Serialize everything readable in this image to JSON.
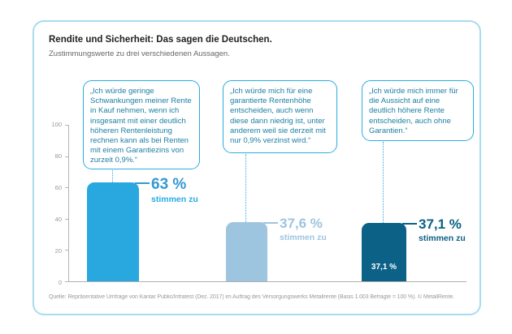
{
  "header": {
    "title": "Rendite und Sicherheit: Das sagen die Deutschen.",
    "subtitle": "Zustimmungswerte zu drei verschiedenen Aussagen."
  },
  "bubbles": [
    {
      "text": "„Ich würde geringe Schwankungen meiner Rente in Kauf nehmen, wenn ich insgesamt mit einer deutlich höheren Rentenleistung rechnen kann als bei Renten mit einem Garantiezins von zurzeit 0,9%.“"
    },
    {
      "text": "„Ich würde mich für eine garantierte Rentenhöhe entscheiden, auch wenn diese dann niedrig ist, unter anderem weil sie derzeit mit nur 0,9% verzinst wird.“"
    },
    {
      "text": "„Ich würde mich immer für die Aussicht auf eine deutlich höhere Rente entscheiden, auch ohne Garantien.“"
    }
  ],
  "bars": [
    {
      "value_label": "63 %",
      "agree_label": "stimmen zu",
      "inside_label": ""
    },
    {
      "value_label": "37,6 %",
      "agree_label": "stimmen zu",
      "inside_label": ""
    },
    {
      "value_label": "37,1 %",
      "agree_label": "stimmen zu",
      "inside_label": "37,1 %"
    }
  ],
  "y_axis": {
    "ticks": [
      "100",
      "80",
      "60",
      "40",
      "20",
      "0"
    ]
  },
  "footer": {
    "source": "Quelle: Repräsentative Umfrage von Kantar Public/Infratest (Dez. 2017) im Auftrag des Versorgungswerks Metallrente (Basis 1.003 Befragte = 100 %). © MetallRente."
  },
  "colors": {
    "card_border": "#a9dbee",
    "bubble_border": "#2aabe2",
    "bubble_text": "#1d7fa3",
    "bar_1": "#29a8e0",
    "bar_2": "#9dc5e0",
    "bar_3": "#0c6187",
    "bar_1_label": "#3498d1",
    "bar_1_sublabel": "#29abe2",
    "axis": "#b5b5b5",
    "muted_text": "#9a9a9a"
  },
  "chart_data": {
    "type": "bar",
    "title": "Rendite und Sicherheit: Das sagen die Deutschen.",
    "subtitle": "Zustimmungswerte zu drei verschiedenen Aussagen.",
    "categories": [
      "Ich würde geringe Schwankungen meiner Rente in Kauf nehmen, wenn ich insgesamt mit einer deutlich höheren Rentenleistung rechnen kann als bei Renten mit einem Garantiezins von zurzeit 0,9%.",
      "Ich würde mich für eine garantierte Rentenhöhe entscheiden, auch wenn diese dann niedrig ist, unter anderem weil sie derzeit mit nur 0,9% verzinst wird.",
      "Ich würde mich immer für die Aussicht auf eine deutlich höhere Rente entscheiden, auch ohne Garantien."
    ],
    "values": [
      63,
      37.6,
      37.1
    ],
    "value_labels": [
      "63 %",
      "37,6 %",
      "37,1 %"
    ],
    "series_label": "stimmen zu",
    "unit": "%",
    "xlabel": "",
    "ylabel": "",
    "ylim": [
      0,
      100
    ],
    "yticks": [
      0,
      20,
      40,
      60,
      80,
      100
    ],
    "grid": false,
    "legend": false
  }
}
